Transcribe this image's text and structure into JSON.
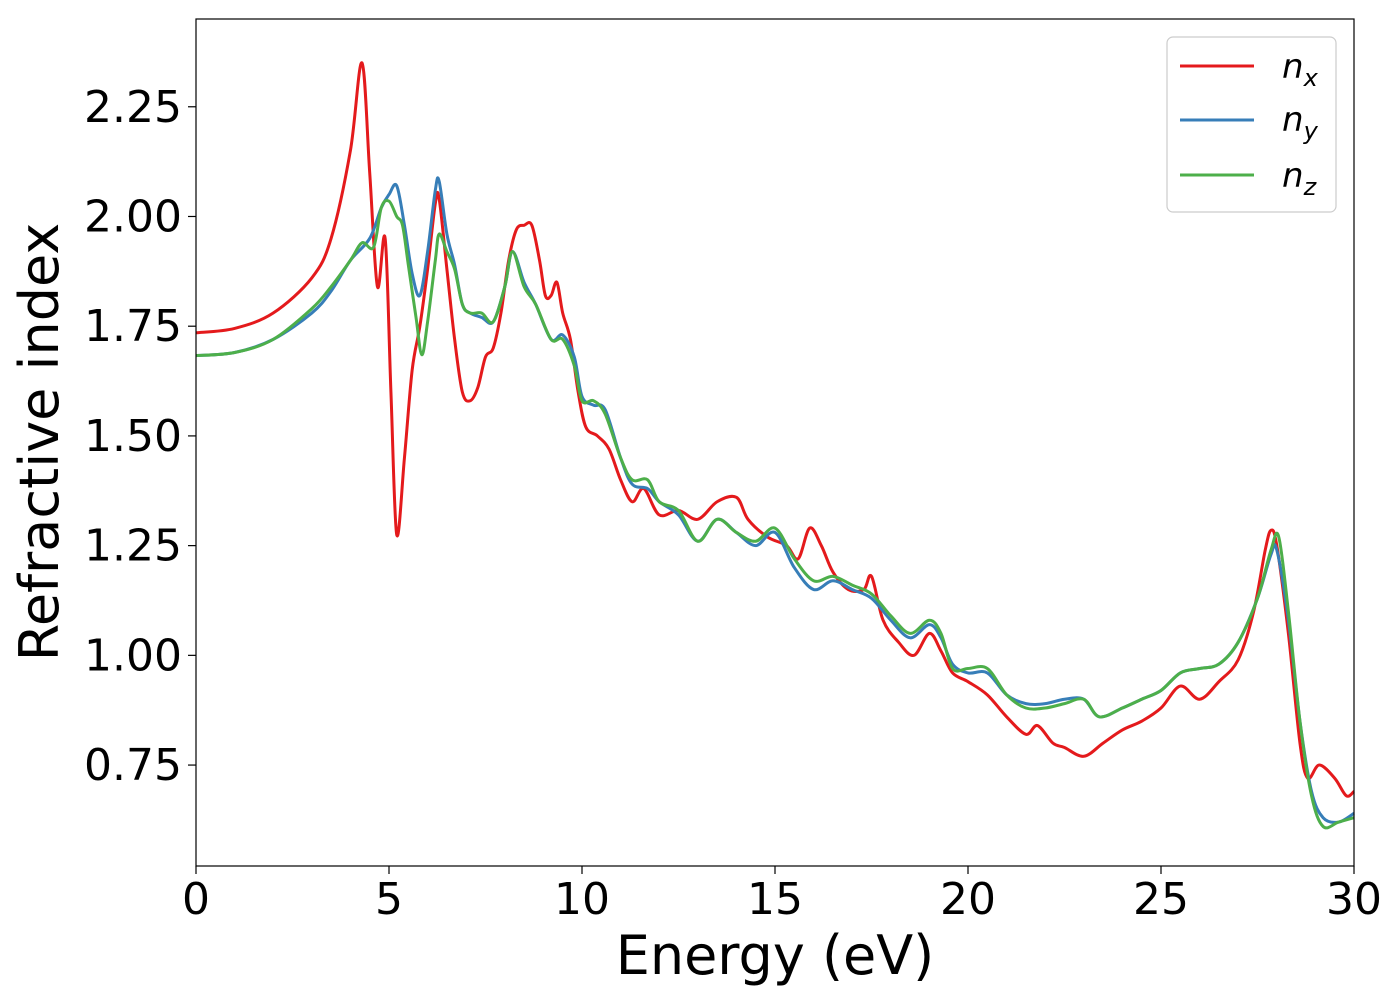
{
  "chart_data": {
    "type": "line",
    "xlabel": "Energy (eV)",
    "ylabel": "Refractive index",
    "xlim": [
      0,
      30
    ],
    "ylim": [
      0.52,
      2.45
    ],
    "xticks": [
      0,
      5,
      10,
      15,
      20,
      25,
      30
    ],
    "xtick_labels": [
      "0",
      "5",
      "10",
      "15",
      "20",
      "25",
      "30"
    ],
    "yticks": [
      0.75,
      1.0,
      1.25,
      1.5,
      1.75,
      2.0,
      2.25
    ],
    "ytick_labels": [
      "0.75",
      "1.00",
      "1.25",
      "1.50",
      "1.75",
      "2.00",
      "2.25"
    ],
    "grid": false,
    "legend_position": "top-right",
    "series": [
      {
        "name": "n_x",
        "legend_base": "n",
        "legend_sub": "x",
        "color": "#e41a1c",
        "points": [
          [
            0,
            1.735
          ],
          [
            1,
            1.745
          ],
          [
            2,
            1.78
          ],
          [
            3,
            1.86
          ],
          [
            3.5,
            1.95
          ],
          [
            4,
            2.15
          ],
          [
            4.3,
            2.35
          ],
          [
            4.5,
            2.1
          ],
          [
            4.7,
            1.84
          ],
          [
            4.9,
            1.95
          ],
          [
            5.05,
            1.6
          ],
          [
            5.2,
            1.275
          ],
          [
            5.4,
            1.45
          ],
          [
            5.6,
            1.65
          ],
          [
            5.8,
            1.75
          ],
          [
            6.0,
            1.88
          ],
          [
            6.2,
            2.03
          ],
          [
            6.3,
            2.04
          ],
          [
            6.5,
            1.88
          ],
          [
            6.7,
            1.72
          ],
          [
            6.9,
            1.6
          ],
          [
            7.1,
            1.58
          ],
          [
            7.3,
            1.61
          ],
          [
            7.5,
            1.68
          ],
          [
            7.7,
            1.7
          ],
          [
            7.9,
            1.78
          ],
          [
            8.1,
            1.9
          ],
          [
            8.3,
            1.97
          ],
          [
            8.5,
            1.98
          ],
          [
            8.7,
            1.98
          ],
          [
            8.9,
            1.9
          ],
          [
            9.05,
            1.82
          ],
          [
            9.2,
            1.82
          ],
          [
            9.35,
            1.85
          ],
          [
            9.5,
            1.78
          ],
          [
            9.7,
            1.72
          ],
          [
            9.9,
            1.6
          ],
          [
            10.1,
            1.52
          ],
          [
            10.4,
            1.5
          ],
          [
            10.7,
            1.47
          ],
          [
            11.0,
            1.4
          ],
          [
            11.3,
            1.35
          ],
          [
            11.6,
            1.38
          ],
          [
            12.0,
            1.32
          ],
          [
            12.5,
            1.33
          ],
          [
            13.0,
            1.31
          ],
          [
            13.5,
            1.35
          ],
          [
            14.0,
            1.36
          ],
          [
            14.3,
            1.31
          ],
          [
            14.8,
            1.27
          ],
          [
            15.3,
            1.25
          ],
          [
            15.6,
            1.22
          ],
          [
            15.9,
            1.29
          ],
          [
            16.2,
            1.25
          ],
          [
            16.5,
            1.19
          ],
          [
            16.9,
            1.15
          ],
          [
            17.3,
            1.15
          ],
          [
            17.5,
            1.18
          ],
          [
            17.8,
            1.08
          ],
          [
            18.2,
            1.03
          ],
          [
            18.6,
            1.0
          ],
          [
            19.0,
            1.05
          ],
          [
            19.3,
            1.01
          ],
          [
            19.6,
            0.96
          ],
          [
            20.0,
            0.94
          ],
          [
            20.5,
            0.91
          ],
          [
            21.0,
            0.86
          ],
          [
            21.5,
            0.82
          ],
          [
            21.8,
            0.84
          ],
          [
            22.2,
            0.8
          ],
          [
            22.5,
            0.79
          ],
          [
            23.0,
            0.77
          ],
          [
            23.5,
            0.8
          ],
          [
            24.0,
            0.83
          ],
          [
            24.5,
            0.85
          ],
          [
            25.0,
            0.88
          ],
          [
            25.5,
            0.93
          ],
          [
            26.0,
            0.9
          ],
          [
            26.5,
            0.94
          ],
          [
            27.0,
            0.99
          ],
          [
            27.4,
            1.1
          ],
          [
            27.7,
            1.24
          ],
          [
            27.85,
            1.285
          ],
          [
            28.0,
            1.25
          ],
          [
            28.3,
            1.05
          ],
          [
            28.6,
            0.8
          ],
          [
            28.8,
            0.72
          ],
          [
            29.1,
            0.75
          ],
          [
            29.5,
            0.72
          ],
          [
            29.8,
            0.68
          ],
          [
            30.0,
            0.69
          ]
        ]
      },
      {
        "name": "n_y",
        "legend_base": "n",
        "legend_sub": "y",
        "color": "#377eb8",
        "points": [
          [
            0,
            1.683
          ],
          [
            1,
            1.69
          ],
          [
            2,
            1.72
          ],
          [
            3,
            1.78
          ],
          [
            3.5,
            1.83
          ],
          [
            4,
            1.9
          ],
          [
            4.5,
            1.95
          ],
          [
            4.8,
            2.02
          ],
          [
            5.0,
            2.05
          ],
          [
            5.2,
            2.07
          ],
          [
            5.4,
            1.98
          ],
          [
            5.6,
            1.87
          ],
          [
            5.8,
            1.82
          ],
          [
            6.0,
            1.92
          ],
          [
            6.2,
            2.06
          ],
          [
            6.3,
            2.08
          ],
          [
            6.5,
            1.96
          ],
          [
            6.7,
            1.89
          ],
          [
            6.9,
            1.8
          ],
          [
            7.1,
            1.78
          ],
          [
            7.4,
            1.77
          ],
          [
            7.7,
            1.76
          ],
          [
            8.0,
            1.84
          ],
          [
            8.2,
            1.92
          ],
          [
            8.5,
            1.85
          ],
          [
            8.8,
            1.8
          ],
          [
            9.2,
            1.72
          ],
          [
            9.5,
            1.73
          ],
          [
            9.8,
            1.68
          ],
          [
            10.0,
            1.59
          ],
          [
            10.3,
            1.57
          ],
          [
            10.6,
            1.56
          ],
          [
            11.0,
            1.45
          ],
          [
            11.3,
            1.39
          ],
          [
            11.7,
            1.38
          ],
          [
            12.0,
            1.35
          ],
          [
            12.5,
            1.32
          ],
          [
            13.0,
            1.26
          ],
          [
            13.5,
            1.31
          ],
          [
            14.0,
            1.28
          ],
          [
            14.5,
            1.25
          ],
          [
            15.0,
            1.28
          ],
          [
            15.5,
            1.2
          ],
          [
            16.0,
            1.15
          ],
          [
            16.5,
            1.17
          ],
          [
            17.0,
            1.15
          ],
          [
            17.5,
            1.13
          ],
          [
            18.0,
            1.08
          ],
          [
            18.5,
            1.04
          ],
          [
            19.0,
            1.07
          ],
          [
            19.3,
            1.04
          ],
          [
            19.6,
            0.98
          ],
          [
            20.0,
            0.96
          ],
          [
            20.5,
            0.96
          ],
          [
            21.0,
            0.91
          ],
          [
            21.5,
            0.89
          ],
          [
            22.0,
            0.89
          ],
          [
            22.5,
            0.9
          ],
          [
            23.0,
            0.9
          ],
          [
            23.4,
            0.86
          ],
          [
            24.0,
            0.88
          ],
          [
            24.5,
            0.9
          ],
          [
            25.0,
            0.92
          ],
          [
            25.5,
            0.96
          ],
          [
            26.0,
            0.97
          ],
          [
            26.5,
            0.98
          ],
          [
            27.0,
            1.03
          ],
          [
            27.5,
            1.13
          ],
          [
            27.85,
            1.23
          ],
          [
            28.0,
            1.24
          ],
          [
            28.3,
            1.08
          ],
          [
            28.6,
            0.85
          ],
          [
            28.9,
            0.69
          ],
          [
            29.2,
            0.63
          ],
          [
            29.6,
            0.62
          ],
          [
            30.0,
            0.64
          ]
        ]
      },
      {
        "name": "n_z",
        "legend_base": "n",
        "legend_sub": "z",
        "color": "#4daf4a",
        "points": [
          [
            0,
            1.683
          ],
          [
            1,
            1.69
          ],
          [
            2,
            1.72
          ],
          [
            3,
            1.79
          ],
          [
            3.5,
            1.84
          ],
          [
            4,
            1.9
          ],
          [
            4.3,
            1.94
          ],
          [
            4.6,
            1.93
          ],
          [
            4.8,
            2.02
          ],
          [
            5.0,
            2.035
          ],
          [
            5.2,
            2.0
          ],
          [
            5.35,
            1.98
          ],
          [
            5.5,
            1.89
          ],
          [
            5.7,
            1.77
          ],
          [
            5.85,
            1.685
          ],
          [
            6.0,
            1.76
          ],
          [
            6.2,
            1.9
          ],
          [
            6.3,
            1.96
          ],
          [
            6.5,
            1.92
          ],
          [
            6.7,
            1.88
          ],
          [
            6.9,
            1.8
          ],
          [
            7.1,
            1.78
          ],
          [
            7.4,
            1.78
          ],
          [
            7.7,
            1.76
          ],
          [
            8.0,
            1.84
          ],
          [
            8.2,
            1.92
          ],
          [
            8.5,
            1.84
          ],
          [
            8.8,
            1.8
          ],
          [
            9.2,
            1.72
          ],
          [
            9.5,
            1.72
          ],
          [
            9.8,
            1.66
          ],
          [
            10.0,
            1.58
          ],
          [
            10.3,
            1.58
          ],
          [
            10.6,
            1.55
          ],
          [
            11.0,
            1.45
          ],
          [
            11.3,
            1.4
          ],
          [
            11.7,
            1.4
          ],
          [
            12.0,
            1.35
          ],
          [
            12.5,
            1.33
          ],
          [
            13.0,
            1.26
          ],
          [
            13.5,
            1.31
          ],
          [
            14.0,
            1.28
          ],
          [
            14.5,
            1.26
          ],
          [
            15.0,
            1.29
          ],
          [
            15.5,
            1.22
          ],
          [
            16.0,
            1.17
          ],
          [
            16.5,
            1.18
          ],
          [
            17.0,
            1.16
          ],
          [
            17.5,
            1.14
          ],
          [
            18.0,
            1.09
          ],
          [
            18.5,
            1.05
          ],
          [
            19.0,
            1.08
          ],
          [
            19.3,
            1.05
          ],
          [
            19.6,
            0.97
          ],
          [
            20.0,
            0.97
          ],
          [
            20.5,
            0.97
          ],
          [
            21.0,
            0.91
          ],
          [
            21.5,
            0.88
          ],
          [
            22.0,
            0.88
          ],
          [
            22.5,
            0.89
          ],
          [
            23.0,
            0.9
          ],
          [
            23.4,
            0.86
          ],
          [
            24.0,
            0.88
          ],
          [
            24.5,
            0.9
          ],
          [
            25.0,
            0.92
          ],
          [
            25.5,
            0.96
          ],
          [
            26.0,
            0.97
          ],
          [
            26.5,
            0.98
          ],
          [
            27.0,
            1.03
          ],
          [
            27.5,
            1.13
          ],
          [
            27.85,
            1.24
          ],
          [
            28.05,
            1.27
          ],
          [
            28.3,
            1.1
          ],
          [
            28.6,
            0.85
          ],
          [
            28.9,
            0.68
          ],
          [
            29.2,
            0.61
          ],
          [
            29.6,
            0.62
          ],
          [
            30.0,
            0.63
          ]
        ]
      }
    ]
  }
}
